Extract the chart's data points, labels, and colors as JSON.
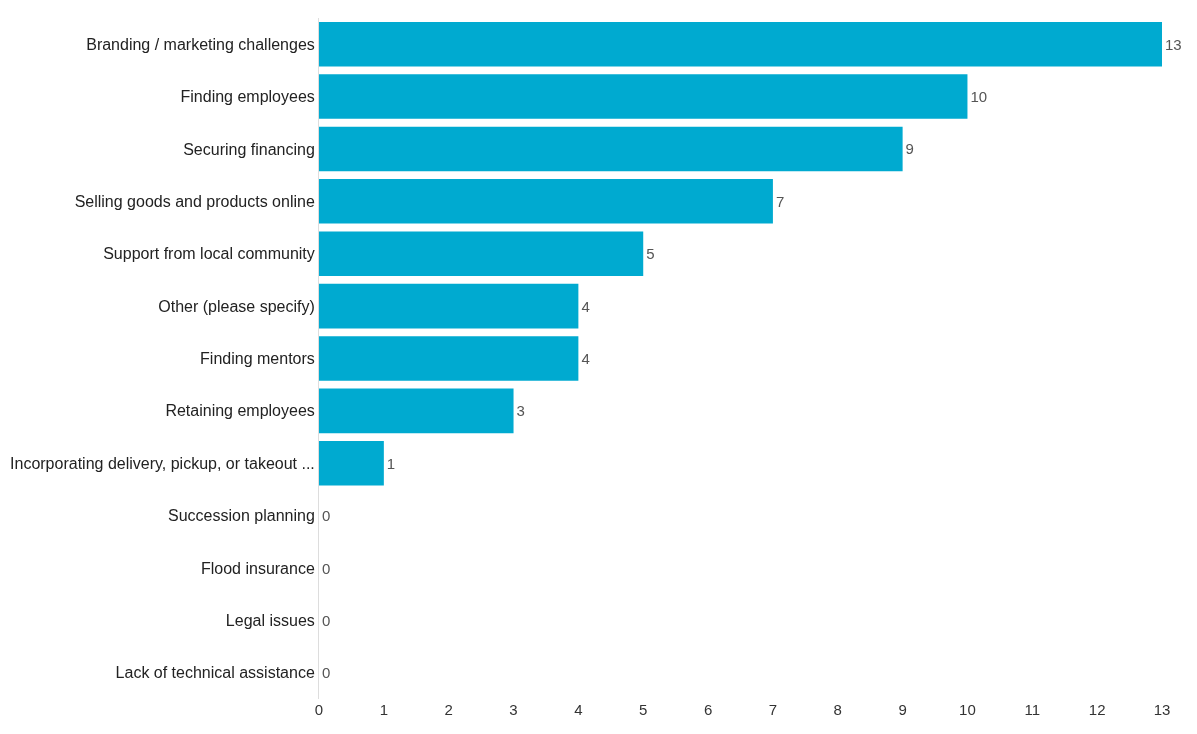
{
  "chart_data": {
    "type": "bar",
    "orientation": "horizontal",
    "categories": [
      "Branding / marketing challenges",
      "Finding employees",
      "Securing financing",
      "Selling goods and products online",
      "Support from local community",
      "Other (please specify)",
      "Finding mentors",
      "Retaining employees",
      "Incorporating delivery, pickup, or takeout ...",
      "Succession planning",
      "Flood insurance",
      "Legal issues",
      "Lack of technical assistance"
    ],
    "values": [
      13,
      10,
      9,
      7,
      5,
      4,
      4,
      3,
      1,
      0,
      0,
      0,
      0
    ],
    "color": "#00aad0",
    "xlim": [
      0,
      13
    ],
    "xticks": [
      0,
      1,
      2,
      3,
      4,
      5,
      6,
      7,
      8,
      9,
      10,
      11,
      12,
      13
    ],
    "grid": false,
    "data_labels": true
  }
}
